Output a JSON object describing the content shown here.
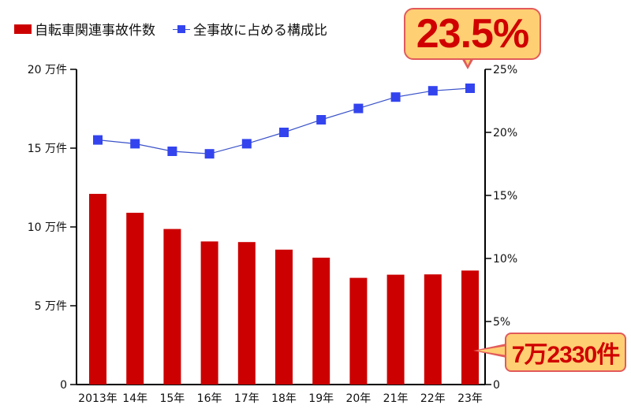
{
  "legend": {
    "bar_label": "自転車関連事故件数",
    "line_label": "全事故に占める構成比"
  },
  "callouts": {
    "top": "23.5%",
    "bottom": "7万2330件"
  },
  "colors": {
    "bar": "#cc0000",
    "line": "#3a52c9",
    "marker": "#3344ee",
    "callout_fill": "#ffcf73",
    "callout_border": "#e25a5a",
    "callout_text": "#d00000"
  },
  "chart_data": {
    "type": "bar",
    "categories": [
      "2013年",
      "14年",
      "15年",
      "16年",
      "17年",
      "18年",
      "19年",
      "20年",
      "21年",
      "22年",
      "23年"
    ],
    "series": [
      {
        "name": "自転車関連事故件数",
        "type": "bar",
        "axis": "left",
        "values": [
          121000,
          109000,
          98700,
          90800,
          90400,
          85600,
          80500,
          67700,
          69700,
          69900,
          72330
        ]
      },
      {
        "name": "全事故に占める構成比",
        "type": "line",
        "axis": "right",
        "values": [
          19.4,
          19.1,
          18.5,
          18.3,
          19.1,
          20.0,
          21.0,
          21.9,
          22.8,
          23.3,
          23.5
        ]
      }
    ],
    "y_left": {
      "ylim": [
        0,
        200000
      ],
      "ticks": [
        0,
        50000,
        100000,
        150000,
        200000
      ],
      "tick_labels": [
        "0",
        "5 万件",
        "10 万件",
        "15 万件",
        "20 万件"
      ]
    },
    "y_right": {
      "ylim": [
        0,
        25
      ],
      "ticks": [
        0,
        5,
        10,
        15,
        20,
        25
      ],
      "tick_labels": [
        "0",
        "5%",
        "10%",
        "15%",
        "20%",
        "25%"
      ]
    },
    "grid": false,
    "legend_position": "top-left"
  }
}
